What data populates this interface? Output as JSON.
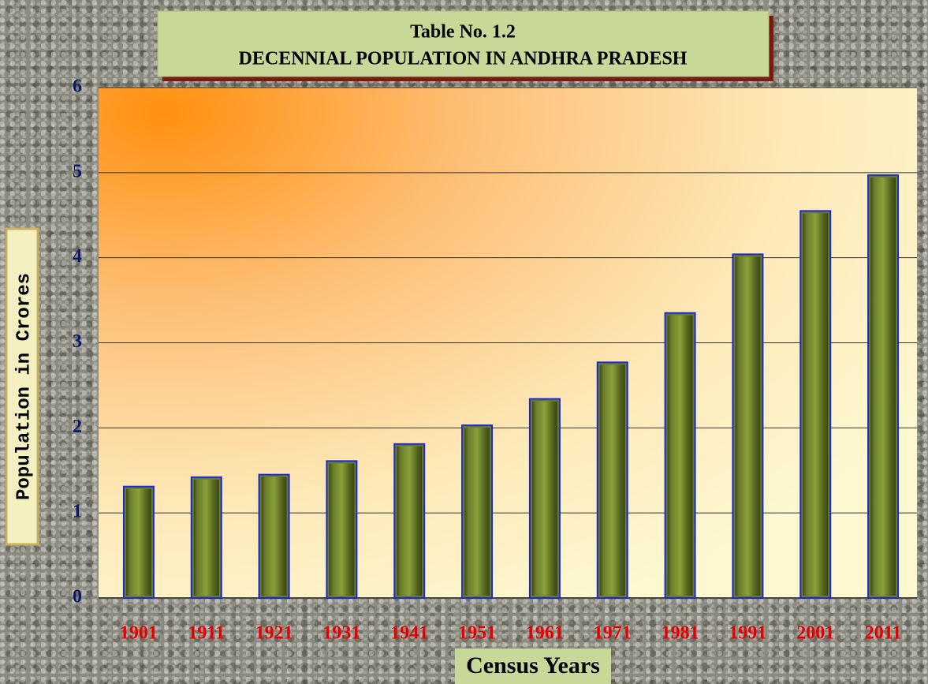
{
  "chart_data": {
    "type": "bar",
    "title": "Table No. 1.2",
    "subtitle": "DECENNIAL POPULATION IN ANDHRA PRADESH",
    "y_label": "Population in Crores",
    "x_label": "Census Years",
    "categories": [
      "1901",
      "1911",
      "1921",
      "1931",
      "1941",
      "1951",
      "1961",
      "1971",
      "1981",
      "1991",
      "2001",
      "2011"
    ],
    "values": [
      1.31,
      1.42,
      1.45,
      1.61,
      1.81,
      2.03,
      2.34,
      2.77,
      3.35,
      4.04,
      4.55,
      4.97
    ],
    "color": "#6b7d2c",
    "ylim": [
      0,
      6
    ],
    "yticks": [
      0,
      1,
      2,
      3,
      4,
      5,
      6
    ],
    "grid": true
  }
}
